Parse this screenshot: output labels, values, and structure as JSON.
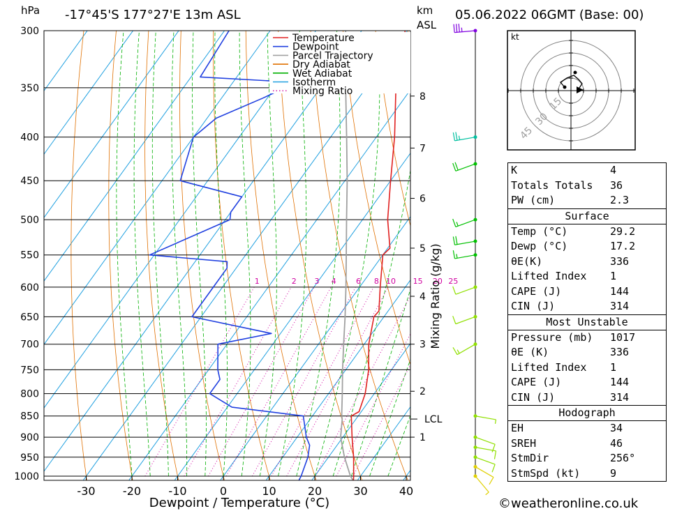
{
  "header": {
    "pressure_unit": "hPa",
    "location": "-17°45'S  177°27'E  13m  ASL",
    "height_unit_top": "km",
    "height_unit_bottom": "ASL",
    "datetime": "05.06.2022  06GMT  (Base: 00)"
  },
  "footer": {
    "xlabel": "Dewpoint / Temperature (°C)",
    "credit": "©weatheronline.co.uk"
  },
  "legend": [
    {
      "label": "Temperature",
      "color": "#e02020",
      "style": "solid"
    },
    {
      "label": "Dewpoint",
      "color": "#2040e0",
      "style": "solid"
    },
    {
      "label": "Parcel Trajectory",
      "color": "#a0a0a0",
      "style": "solid"
    },
    {
      "label": "Dry Adiabat",
      "color": "#e07000",
      "style": "solid"
    },
    {
      "label": "Wet Adiabat",
      "color": "#00b000",
      "style": "solid"
    },
    {
      "label": "Isotherm",
      "color": "#20a0e0",
      "style": "solid"
    },
    {
      "label": "Mixing Ratio",
      "color": "#d000a0",
      "style": "dotted"
    }
  ],
  "mixing_ratio_axis": {
    "label": "Mixing Ratio (g/kg)",
    "values": [
      "1",
      "2",
      "3",
      "4",
      "6",
      "8",
      "10",
      "15",
      "20",
      "25"
    ]
  },
  "chart_data": {
    "type": "skew-t",
    "y_axis": {
      "label": "hPa",
      "scale": "log",
      "range": [
        1000,
        300
      ],
      "ticks": [
        300,
        350,
        400,
        450,
        500,
        550,
        600,
        650,
        700,
        750,
        800,
        850,
        900,
        950,
        1000
      ]
    },
    "x_axis": {
      "label": "Dewpoint / Temperature (°C)",
      "range": [
        -40,
        40
      ],
      "ticks": [
        -30,
        -20,
        -10,
        0,
        10,
        20,
        30,
        40
      ]
    },
    "height_axis_km": {
      "labels": [
        "1",
        "2",
        "3",
        "4",
        "5",
        "6",
        "7",
        "8"
      ],
      "lcl_label": "LCL"
    },
    "temperature": {
      "color": "#e02020",
      "points": [
        [
          1013,
          29.2
        ],
        [
          1000,
          28.5
        ],
        [
          950,
          25.5
        ],
        [
          900,
          22.0
        ],
        [
          850,
          18.5
        ],
        [
          840,
          19.5
        ],
        [
          800,
          18.0
        ],
        [
          750,
          15.0
        ],
        [
          700,
          11.0
        ],
        [
          650,
          7.8
        ],
        [
          640,
          8.0
        ],
        [
          600,
          4.5
        ],
        [
          550,
          0.0
        ],
        [
          540,
          0.5
        ],
        [
          500,
          -4.5
        ],
        [
          450,
          -10.0
        ],
        [
          400,
          -16.0
        ],
        [
          350,
          -23.5
        ],
        [
          340,
          -24.0
        ],
        [
          300,
          -30.5
        ]
      ]
    },
    "dewpoint": {
      "color": "#2040e0",
      "points": [
        [
          1013,
          17.2
        ],
        [
          1000,
          17.0
        ],
        [
          950,
          15.5
        ],
        [
          920,
          14.0
        ],
        [
          900,
          12.0
        ],
        [
          850,
          8.0
        ],
        [
          830,
          -9.0
        ],
        [
          800,
          -16.0
        ],
        [
          770,
          -16.0
        ],
        [
          750,
          -18.0
        ],
        [
          700,
          -22.0
        ],
        [
          680,
          -12.0
        ],
        [
          650,
          -32.0
        ],
        [
          600,
          -32.0
        ],
        [
          570,
          -32.0
        ],
        [
          560,
          -33.0
        ],
        [
          550,
          -51.0
        ],
        [
          500,
          -39.0
        ],
        [
          490,
          -40.0
        ],
        [
          470,
          -40.0
        ],
        [
          450,
          -56.0
        ],
        [
          400,
          -60.0
        ],
        [
          380,
          -58.0
        ],
        [
          360,
          -51.0
        ],
        [
          345,
          -46.0
        ],
        [
          340,
          -68.0
        ],
        [
          300,
          -69.0
        ]
      ]
    },
    "parcel": {
      "color": "#a0a0a0",
      "points": [
        [
          1013,
          29.2
        ],
        [
          1000,
          27.8
        ],
        [
          950,
          23.5
        ],
        [
          900,
          19.5
        ],
        [
          857,
          17.0
        ],
        [
          850,
          16.4
        ],
        [
          800,
          13.0
        ],
        [
          750,
          9.3
        ],
        [
          700,
          5.5
        ],
        [
          650,
          1.5
        ],
        [
          600,
          -3.0
        ],
        [
          550,
          -8.0
        ],
        [
          500,
          -13.5
        ],
        [
          450,
          -19.5
        ],
        [
          400,
          -26.5
        ],
        [
          350,
          -34.5
        ],
        [
          300,
          -43.5
        ]
      ]
    },
    "lcl_pressure": 857,
    "dry_adiabats_theta_C": [
      -30,
      -20,
      -10,
      0,
      10,
      20,
      30,
      40,
      50,
      60,
      70,
      80,
      90,
      100,
      110,
      120,
      130,
      140,
      150,
      160,
      170,
      180,
      190,
      200
    ],
    "wet_adiabats_C": [
      -20,
      -16,
      -12,
      -8,
      -4,
      0,
      4,
      8,
      12,
      16,
      20,
      24,
      28,
      32,
      36
    ],
    "mixing_ratios_gkg": [
      1,
      2,
      3,
      4,
      6,
      8,
      10,
      15,
      20,
      25
    ],
    "winds": [
      {
        "p": 1000,
        "dir": 140,
        "spd": 5
      },
      {
        "p": 975,
        "dir": 120,
        "spd": 8
      },
      {
        "p": 950,
        "dir": 110,
        "spd": 10
      },
      {
        "p": 925,
        "dir": 100,
        "spd": 10
      },
      {
        "p": 900,
        "dir": 110,
        "spd": 8
      },
      {
        "p": 850,
        "dir": 100,
        "spd": 5
      },
      {
        "p": 700,
        "dir": 240,
        "spd": 15
      },
      {
        "p": 650,
        "dir": 250,
        "spd": 12
      },
      {
        "p": 600,
        "dir": 250,
        "spd": 8
      },
      {
        "p": 550,
        "dir": 260,
        "spd": 15
      },
      {
        "p": 530,
        "dir": 260,
        "spd": 20
      },
      {
        "p": 500,
        "dir": 250,
        "spd": 15
      },
      {
        "p": 430,
        "dir": 250,
        "spd": 20
      },
      {
        "p": 400,
        "dir": 260,
        "spd": 25
      },
      {
        "p": 300,
        "dir": 265,
        "spd": 35
      }
    ]
  },
  "hodograph": {
    "unit": "kt",
    "ring_labels": [
      "15",
      "30",
      "45"
    ]
  },
  "indices": {
    "rows": [
      {
        "k": "K",
        "v": "4"
      },
      {
        "k": "Totals Totals",
        "v": "36"
      },
      {
        "k": "PW (cm)",
        "v": "2.3"
      }
    ]
  },
  "surface": {
    "title": "Surface",
    "rows": [
      {
        "k": "Temp (°C)",
        "v": "29.2"
      },
      {
        "k": "Dewp (°C)",
        "v": "17.2"
      },
      {
        "k": "θE(K)",
        "v": "336"
      },
      {
        "k": "Lifted Index",
        "v": "1"
      },
      {
        "k": "CAPE (J)",
        "v": "144"
      },
      {
        "k": "CIN (J)",
        "v": "314"
      }
    ]
  },
  "most_unstable": {
    "title": "Most Unstable",
    "rows": [
      {
        "k": "Pressure (mb)",
        "v": "1017"
      },
      {
        "k": "θE (K)",
        "v": "336"
      },
      {
        "k": "Lifted Index",
        "v": "1"
      },
      {
        "k": "CAPE (J)",
        "v": "144"
      },
      {
        "k": "CIN (J)",
        "v": "314"
      }
    ]
  },
  "hodo_params": {
    "title": "Hodograph",
    "rows": [
      {
        "k": "EH",
        "v": "34"
      },
      {
        "k": "SREH",
        "v": "46"
      },
      {
        "k": "StmDir",
        "v": "256°"
      },
      {
        "k": "StmSpd (kt)",
        "v": "9"
      }
    ]
  }
}
